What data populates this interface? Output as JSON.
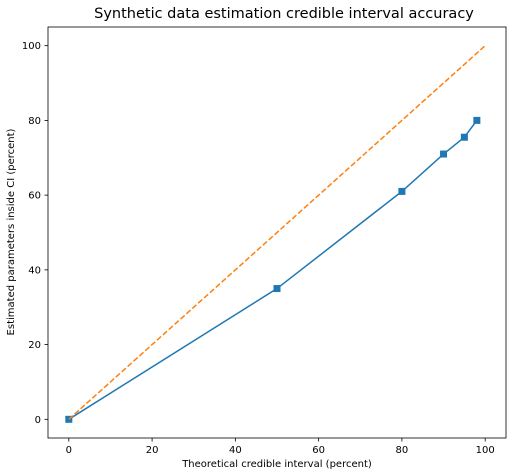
{
  "chart_data": {
    "type": "line",
    "title": "Synthetic data estimation credible interval accuracy",
    "xlabel": "Theoretical credible interval (percent)",
    "ylabel": "Estimated parameters inside CI (percent)",
    "xlim": [
      -5,
      105
    ],
    "ylim": [
      -5,
      105
    ],
    "xticks": [
      0,
      20,
      40,
      60,
      80,
      100
    ],
    "yticks": [
      0,
      20,
      40,
      60,
      80,
      100
    ],
    "grid": false,
    "legend": "none",
    "series": [
      {
        "style": "solid",
        "marker": "square",
        "color": "#1f77b4",
        "x": [
          0,
          50,
          80,
          90,
          95,
          98
        ],
        "y": [
          0,
          35,
          61,
          71,
          75.5,
          80
        ]
      },
      {
        "style": "dashed",
        "marker": "none",
        "color": "#ff7f0e",
        "x": [
          0,
          100
        ],
        "y": [
          0,
          100
        ]
      }
    ]
  }
}
